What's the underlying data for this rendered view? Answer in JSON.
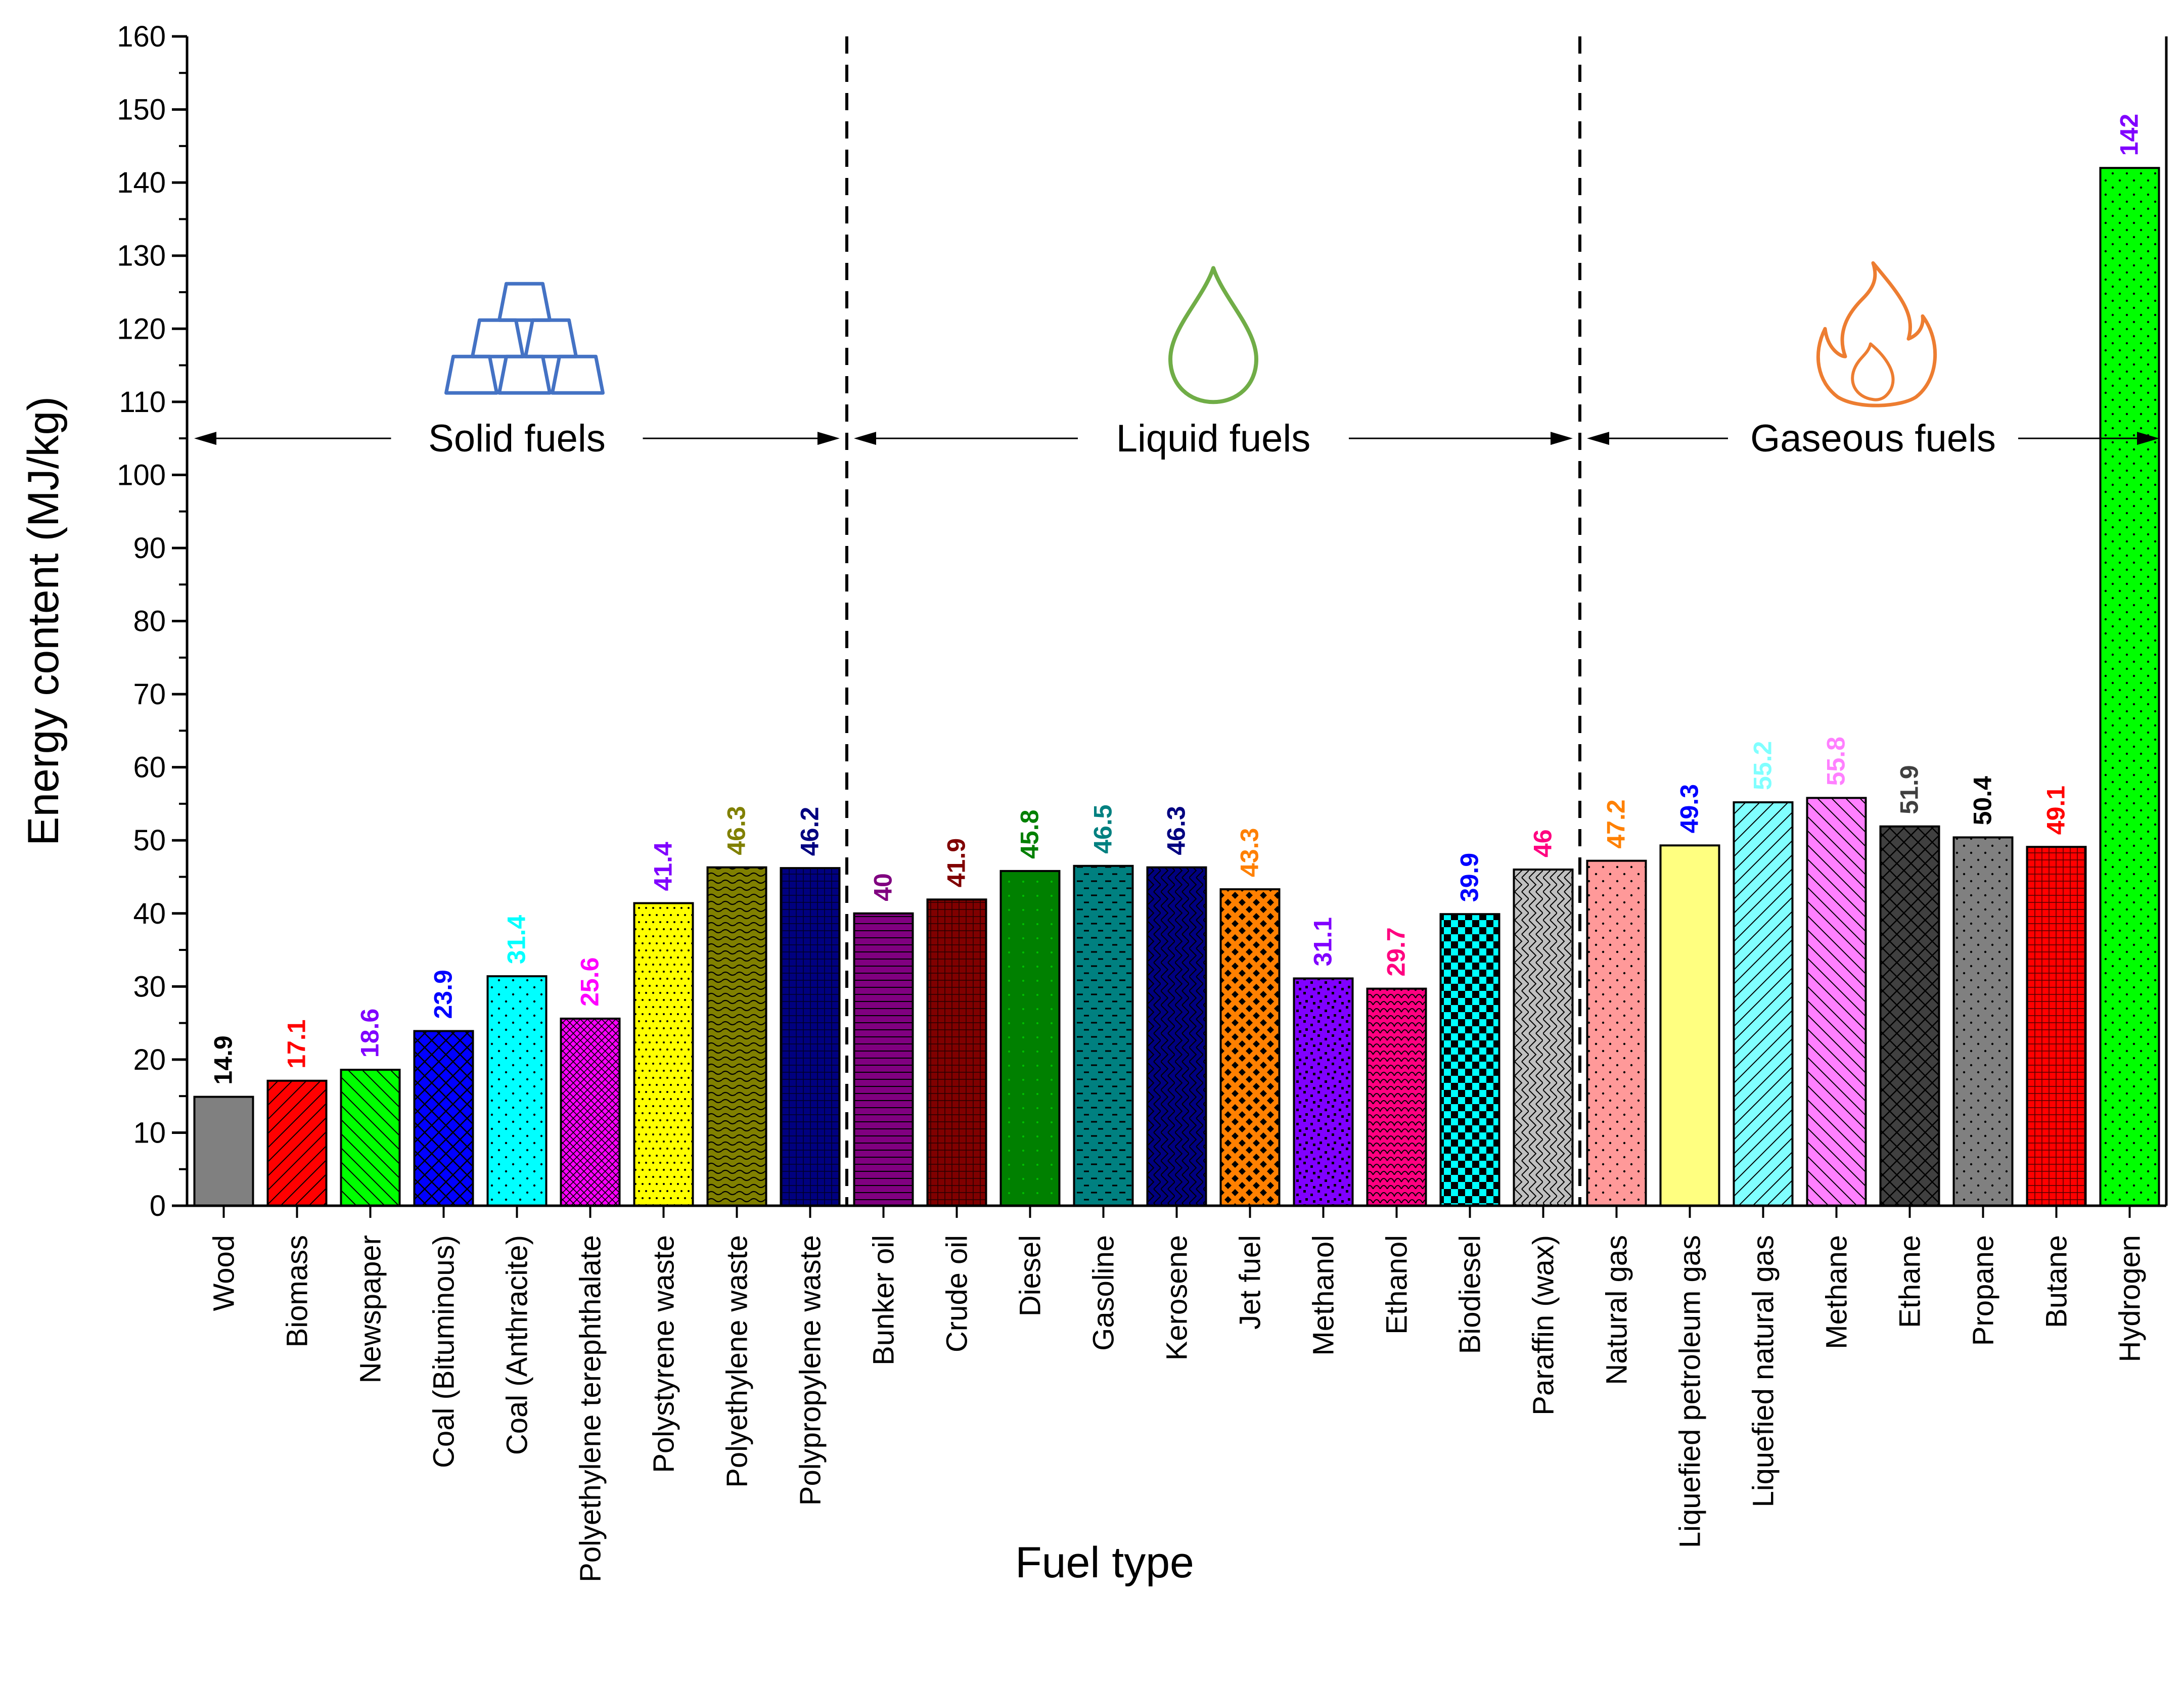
{
  "chart_data": {
    "type": "bar",
    "xlabel": "Fuel type",
    "ylabel": "Energy content (MJ/kg)",
    "ylim": [
      0,
      160
    ],
    "yticks": [
      0,
      10,
      20,
      30,
      40,
      50,
      60,
      70,
      80,
      90,
      100,
      110,
      120,
      130,
      140,
      150,
      160
    ],
    "grid": false,
    "categories": [
      "Wood",
      "Biomass",
      "Newspaper",
      "Coal (Bituminous)",
      "Coal (Anthracite)",
      "Polyethylene terephthalate",
      "Polystyrene waste",
      "Polyethylene waste",
      "Polypropylene waste",
      "Bunker oil",
      "Crude oil",
      "Diesel",
      "Gasoline",
      "Kerosene",
      "Jet fuel",
      "Methanol",
      "Ethanol",
      "Biodiesel",
      "Paraffin (wax)",
      "Natural gas",
      "Liquefied petroleum gas",
      "Liquefied natural gas",
      "Methane",
      "Ethane",
      "Propane",
      "Butane",
      "Hydrogen"
    ],
    "values": [
      14.9,
      17.1,
      18.6,
      23.9,
      31.4,
      25.6,
      41.4,
      46.3,
      46.2,
      40,
      41.9,
      45.8,
      46.5,
      46.3,
      43.3,
      31.1,
      29.7,
      39.9,
      46,
      47.2,
      49.3,
      55.2,
      55.8,
      51.9,
      50.4,
      49.1,
      142
    ],
    "value_labels": [
      "14.9",
      "17.1",
      "18.6",
      "23.9",
      "31.4",
      "25.6",
      "41.4",
      "46.3",
      "46.2",
      "40",
      "41.9",
      "45.8",
      "46.5",
      "46.3",
      "43.3",
      "31.1",
      "29.7",
      "39.9",
      "46",
      "47.2",
      "49.3",
      "55.2",
      "55.8",
      "51.9",
      "50.4",
      "49.1",
      "142"
    ],
    "bar_colors": [
      "#808080",
      "#ff0000",
      "#00ff00",
      "#0000ff",
      "#00ffff",
      "#ff00ff",
      "#ffff00",
      "#808000",
      "#000080",
      "#800080",
      "#800000",
      "#008000",
      "#008080",
      "#000080",
      "#ff8000",
      "#8000ff",
      "#ff0080",
      "#00ffff",
      "#c0c0c0",
      "#ff9999",
      "#ffff80",
      "#80ffff",
      "#ff80ff",
      "#404040",
      "#808080",
      "#ff0000",
      "#00ff00"
    ],
    "patterns": [
      "solid",
      "diag-right",
      "diag-left",
      "crosshatch",
      "dots",
      "dense-cross",
      "dots-dense",
      "wave",
      "fine-cross",
      "fine-lines",
      "fine-cross",
      "sparse-dots",
      "dashes",
      "weave",
      "diamonds",
      "speckle",
      "scales",
      "checker",
      "weave",
      "dots",
      "solid",
      "diag-right",
      "diag-left",
      "crosshatch",
      "dots",
      "fine-cross",
      "dots"
    ],
    "label_colors": [
      "#000000",
      "#ff0000",
      "#8000ff",
      "#0000ff",
      "#00ffff",
      "#ff00ff",
      "#8000ff",
      "#808000",
      "#000080",
      "#800080",
      "#800000",
      "#008000",
      "#008080",
      "#000080",
      "#ff8000",
      "#8000ff",
      "#ff0080",
      "#0000ff",
      "#ff0080",
      "#ff8000",
      "#0000ff",
      "#80ffff",
      "#ff80ff",
      "#404040",
      "#000000",
      "#ff0000",
      "#8000ff"
    ],
    "groups": [
      {
        "label": "Solid fuels",
        "icon": "gold-bars-icon",
        "icon_color": "#4472c4",
        "first": 0,
        "last": 8
      },
      {
        "label": "Liquid fuels",
        "icon": "droplet-icon",
        "icon_color": "#70ad47",
        "first": 9,
        "last": 18
      },
      {
        "label": "Gaseous fuels",
        "icon": "flame-icon",
        "icon_color": "#ed7d31",
        "first": 19,
        "last": 26
      }
    ],
    "group_arrow_level": 105,
    "group_icon_level": 120
  }
}
